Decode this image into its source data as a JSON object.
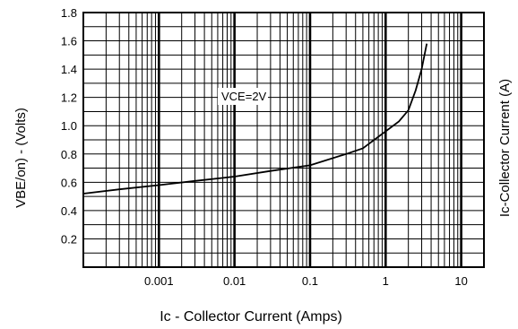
{
  "chart_data": {
    "type": "line",
    "x_scale": "log",
    "xlim": [
      0.0001,
      20
    ],
    "ylim": [
      0,
      1.8
    ],
    "x_ticks": [
      0.001,
      0.01,
      0.1,
      1,
      10
    ],
    "x_tick_labels": [
      "0.001",
      "0.01",
      "0.1",
      "1",
      "10"
    ],
    "y_ticks": [
      0.2,
      0.4,
      0.6,
      0.8,
      1.0,
      1.2,
      1.4,
      1.6,
      1.8
    ],
    "y_tick_labels": [
      "0.2",
      "0.4",
      "0.6",
      "0.8",
      "1.0",
      "1.2",
      "1.4",
      "1.6",
      "1.8"
    ],
    "xlabel": "Ic - Collector Current (Amps)",
    "ylabel": "VBE/on) - (Volts)",
    "right_label": "Ic-Collector Current (A)",
    "grid": true,
    "annotation": "VCE=2V",
    "series": [
      {
        "color": "#000000",
        "x": [
          0.0001,
          0.0003,
          0.001,
          0.003,
          0.01,
          0.03,
          0.1,
          0.3,
          0.5,
          1,
          1.5,
          2,
          2.5,
          3,
          3.5
        ],
        "y": [
          0.52,
          0.55,
          0.58,
          0.61,
          0.64,
          0.68,
          0.72,
          0.8,
          0.84,
          0.96,
          1.03,
          1.11,
          1.25,
          1.4,
          1.58
        ]
      }
    ]
  }
}
